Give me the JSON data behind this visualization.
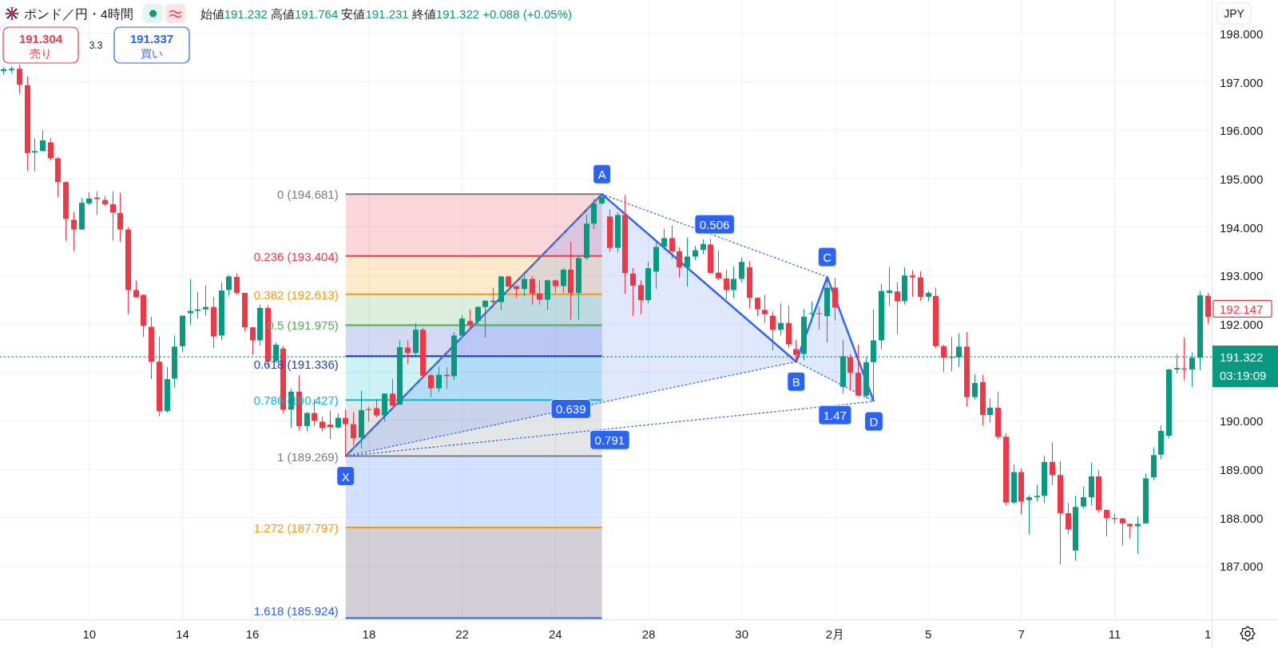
{
  "chart_data": {
    "type": "candlestick",
    "title": "ポンド／円・4時間",
    "subtitle": "始値191.232 高値191.764 安値191.231 終値191.322 +0.088 (+0.05%)",
    "ylabel": "JPY",
    "grid": true,
    "ylim": [
      185.9,
      198.69
    ],
    "yticks": [
      {
        "value": 187,
        "label": "187.000"
      },
      {
        "value": 188,
        "label": "188.000"
      },
      {
        "value": 189,
        "label": "189.000"
      },
      {
        "value": 190,
        "label": "190.000"
      },
      {
        "value": 191,
        "label": null
      },
      {
        "value": 192,
        "label": "192.000"
      },
      {
        "value": 193,
        "label": "193.000"
      },
      {
        "value": 194,
        "label": "194.000"
      },
      {
        "value": 195,
        "label": "195.000"
      },
      {
        "value": 196,
        "label": "196.000"
      },
      {
        "value": 197,
        "label": "197.000"
      },
      {
        "value": 198,
        "label": "198.000"
      }
    ],
    "categories": [
      null,
      null,
      null,
      null,
      null,
      null,
      null,
      null,
      null,
      null,
      null,
      "10",
      null,
      null,
      null,
      null,
      null,
      null,
      null,
      null,
      null,
      null,
      null,
      "14",
      null,
      null,
      null,
      null,
      null,
      null,
      null,
      null,
      "16",
      null,
      null,
      null,
      null,
      null,
      null,
      null,
      null,
      null,
      null,
      null,
      null,
      null,
      null,
      "18",
      null,
      null,
      null,
      null,
      null,
      null,
      null,
      null,
      null,
      null,
      null,
      "22",
      null,
      null,
      null,
      null,
      null,
      null,
      null,
      null,
      null,
      null,
      null,
      "24",
      null,
      null,
      null,
      null,
      null,
      null,
      null,
      null,
      null,
      null,
      null,
      "28",
      null,
      null,
      null,
      null,
      null,
      null,
      null,
      null,
      null,
      null,
      null,
      "30",
      null,
      null,
      null,
      null,
      null,
      null,
      null,
      null,
      null,
      null,
      null,
      "2月",
      null,
      null,
      null,
      null,
      null,
      null,
      null,
      null,
      null,
      null,
      null,
      "5",
      null,
      null,
      null,
      null,
      null,
      null,
      null,
      null,
      null,
      null,
      null,
      "7",
      null,
      null,
      null,
      null,
      null,
      null,
      null,
      null,
      null,
      null,
      null,
      "11",
      null,
      null,
      null,
      null,
      null,
      null,
      null,
      null,
      null,
      null,
      null,
      "1"
    ],
    "ohlc": [
      [
        197.22,
        197.3,
        197.15,
        197.26
      ],
      [
        197.24,
        197.32,
        197.18,
        197.27
      ],
      [
        197.27,
        197.35,
        196.75,
        196.94
      ],
      [
        196.93,
        197.11,
        195.16,
        195.53
      ],
      [
        195.54,
        195.83,
        195.15,
        195.57
      ],
      [
        195.57,
        196.0,
        195.56,
        195.79
      ],
      [
        195.75,
        195.84,
        195.37,
        195.42
      ],
      [
        195.42,
        195.45,
        194.62,
        194.93
      ],
      [
        194.93,
        194.94,
        193.72,
        194.17
      ],
      [
        194.15,
        194.31,
        193.5,
        193.95
      ],
      [
        193.95,
        194.6,
        193.95,
        194.5
      ],
      [
        194.49,
        194.72,
        194.45,
        194.59
      ],
      [
        194.61,
        194.74,
        194.25,
        194.58
      ],
      [
        194.56,
        194.65,
        194.43,
        194.47
      ],
      [
        194.47,
        194.74,
        193.72,
        194.3
      ],
      [
        194.29,
        194.71,
        193.7,
        193.95
      ],
      [
        193.95,
        194.0,
        192.2,
        192.7
      ],
      [
        192.7,
        192.9,
        192.54,
        192.55
      ],
      [
        192.6,
        192.61,
        191.73,
        191.96
      ],
      [
        191.94,
        192.15,
        190.86,
        191.22
      ],
      [
        191.22,
        191.74,
        190.09,
        190.2
      ],
      [
        190.2,
        191.11,
        190.17,
        190.86
      ],
      [
        190.87,
        191.76,
        190.68,
        191.53
      ],
      [
        191.54,
        192.17,
        191.42,
        192.17
      ],
      [
        192.22,
        192.93,
        191.98,
        192.27
      ],
      [
        192.27,
        192.66,
        192.11,
        192.3
      ],
      [
        192.3,
        192.79,
        192.17,
        192.35
      ],
      [
        192.35,
        192.56,
        191.5,
        191.74
      ],
      [
        191.76,
        192.86,
        191.66,
        192.69
      ],
      [
        192.7,
        193.01,
        192.57,
        192.98
      ],
      [
        192.97,
        193.04,
        192.6,
        192.64
      ],
      [
        192.64,
        192.64,
        191.85,
        191.93
      ],
      [
        191.93,
        191.93,
        191.36,
        191.66
      ],
      [
        191.66,
        192.4,
        191.55,
        192.33
      ],
      [
        192.33,
        192.39,
        191.11,
        191.23
      ],
      [
        191.23,
        191.62,
        191.19,
        191.57
      ],
      [
        191.49,
        191.54,
        190.15,
        190.23
      ],
      [
        190.23,
        190.66,
        189.85,
        190.6
      ],
      [
        190.6,
        190.94,
        189.8,
        189.89
      ],
      [
        189.89,
        190.18,
        189.78,
        190.16
      ],
      [
        190.16,
        190.45,
        189.89,
        190.0
      ],
      [
        189.98,
        190.09,
        189.78,
        189.85
      ],
      [
        189.92,
        190.22,
        189.62,
        189.87
      ],
      [
        189.86,
        190.15,
        189.84,
        190.06
      ],
      [
        190.06,
        190.23,
        189.269,
        189.93
      ],
      [
        189.93,
        190.18,
        189.49,
        189.64
      ],
      [
        189.65,
        190.62,
        189.43,
        190.22
      ],
      [
        190.24,
        190.29,
        189.98,
        190.22
      ],
      [
        190.26,
        190.45,
        190.07,
        190.11
      ],
      [
        190.11,
        190.56,
        189.98,
        190.56
      ],
      [
        190.56,
        190.86,
        190.31,
        190.31
      ],
      [
        190.33,
        191.66,
        190.33,
        191.52
      ],
      [
        191.51,
        191.66,
        191.17,
        191.4
      ],
      [
        191.4,
        192.02,
        191.34,
        191.88
      ],
      [
        191.88,
        191.92,
        190.9,
        190.93
      ],
      [
        190.94,
        190.97,
        190.49,
        190.67
      ],
      [
        190.67,
        191.11,
        190.59,
        190.95
      ],
      [
        190.95,
        191.1,
        190.66,
        190.92
      ],
      [
        190.92,
        191.83,
        190.84,
        191.76
      ],
      [
        191.76,
        192.18,
        191.76,
        192.11
      ],
      [
        192.06,
        192.3,
        191.88,
        191.98
      ],
      [
        192.06,
        192.37,
        191.98,
        192.35
      ],
      [
        192.35,
        192.49,
        191.72,
        192.48
      ],
      [
        192.48,
        192.75,
        192.37,
        192.45
      ],
      [
        192.45,
        192.99,
        192.28,
        192.98
      ],
      [
        192.98,
        192.99,
        192.77,
        192.77
      ],
      [
        192.78,
        192.78,
        192.54,
        192.72
      ],
      [
        192.72,
        193.0,
        192.57,
        192.93
      ],
      [
        192.93,
        192.98,
        192.4,
        192.63
      ],
      [
        192.63,
        192.9,
        192.4,
        192.5
      ],
      [
        192.5,
        192.92,
        192.29,
        192.9
      ],
      [
        192.9,
        192.92,
        192.64,
        192.78
      ],
      [
        192.78,
        193.15,
        192.64,
        193.12
      ],
      [
        193.12,
        193.7,
        192.09,
        192.64
      ],
      [
        192.64,
        193.42,
        192.09,
        193.36
      ],
      [
        193.36,
        194.25,
        193.32,
        194.07
      ],
      [
        194.07,
        194.58,
        193.96,
        194.49
      ],
      [
        194.49,
        194.681,
        194.46,
        194.62
      ],
      [
        194.22,
        194.36,
        193.48,
        193.57
      ],
      [
        193.57,
        194.31,
        193.48,
        194.25
      ],
      [
        194.25,
        194.66,
        192.62,
        193.05
      ],
      [
        193.04,
        193.15,
        192.16,
        192.79
      ],
      [
        192.8,
        192.9,
        192.2,
        192.49
      ],
      [
        192.49,
        193.28,
        192.43,
        193.15
      ],
      [
        193.08,
        193.72,
        192.72,
        193.59
      ],
      [
        193.59,
        193.96,
        193.53,
        193.77
      ],
      [
        193.77,
        194.03,
        193.34,
        193.5
      ],
      [
        193.5,
        193.58,
        192.95,
        193.17
      ],
      [
        193.17,
        193.78,
        192.77,
        193.39
      ],
      [
        193.39,
        193.61,
        193.32,
        193.52
      ],
      [
        193.53,
        193.75,
        193.44,
        193.65
      ],
      [
        193.64,
        193.76,
        193.05,
        193.05
      ],
      [
        193.06,
        193.52,
        192.9,
        192.94
      ],
      [
        192.94,
        193.12,
        192.51,
        192.7
      ],
      [
        192.7,
        193.19,
        192.53,
        192.93
      ],
      [
        192.93,
        193.37,
        192.86,
        193.28
      ],
      [
        193.17,
        193.3,
        192.32,
        192.54
      ],
      [
        192.54,
        192.55,
        192.16,
        192.3
      ],
      [
        192.29,
        192.6,
        192.02,
        192.2
      ],
      [
        192.17,
        192.26,
        191.45,
        191.88
      ],
      [
        191.88,
        192.43,
        191.76,
        192.02
      ],
      [
        192.02,
        192.38,
        191.5,
        191.58
      ],
      [
        191.48,
        191.67,
        191.22,
        191.36
      ],
      [
        191.38,
        192.31,
        191.25,
        192.15
      ],
      [
        192.21,
        192.46,
        192.04,
        192.23
      ],
      [
        192.22,
        192.35,
        191.88,
        192.21
      ],
      [
        192.16,
        192.97,
        191.61,
        192.75
      ],
      [
        192.75,
        192.95,
        192.07,
        192.34
      ],
      [
        190.7,
        191.67,
        190.56,
        191.33
      ],
      [
        191.31,
        191.38,
        190.62,
        190.99
      ],
      [
        190.99,
        191.57,
        190.5,
        190.52
      ],
      [
        190.52,
        191.32,
        190.47,
        191.21
      ],
      [
        191.21,
        192.3,
        190.4,
        191.66
      ],
      [
        191.66,
        192.83,
        191.48,
        192.68
      ],
      [
        192.64,
        193.17,
        192.37,
        192.69
      ],
      [
        192.67,
        192.86,
        191.79,
        192.47
      ],
      [
        192.47,
        193.17,
        192.4,
        193.0
      ],
      [
        193.0,
        193.11,
        192.56,
        192.96
      ],
      [
        192.96,
        193.09,
        192.48,
        192.56
      ],
      [
        192.56,
        192.68,
        192.47,
        192.64
      ],
      [
        192.58,
        192.75,
        191.49,
        191.54
      ],
      [
        191.54,
        191.57,
        191.0,
        191.3
      ],
      [
        191.3,
        191.73,
        191.02,
        191.32
      ],
      [
        191.31,
        191.81,
        191.11,
        191.53
      ],
      [
        191.53,
        191.83,
        190.29,
        190.49
      ],
      [
        190.49,
        190.96,
        190.44,
        190.78
      ],
      [
        190.8,
        190.95,
        189.9,
        190.12
      ],
      [
        190.12,
        190.46,
        189.96,
        190.27
      ],
      [
        190.27,
        190.6,
        189.61,
        189.67
      ],
      [
        189.67,
        189.74,
        188.24,
        188.31
      ],
      [
        188.31,
        189.09,
        188.27,
        188.94
      ],
      [
        188.94,
        189.02,
        188.07,
        188.33
      ],
      [
        188.36,
        188.46,
        187.65,
        188.42
      ],
      [
        188.42,
        188.68,
        188.33,
        188.45
      ],
      [
        188.45,
        189.28,
        188.3,
        189.15
      ],
      [
        189.15,
        189.56,
        188.67,
        188.88
      ],
      [
        188.88,
        189.17,
        187.03,
        188.09
      ],
      [
        188.09,
        188.3,
        187.66,
        187.76
      ],
      [
        187.32,
        188.45,
        187.11,
        188.22
      ],
      [
        188.23,
        188.64,
        188.19,
        188.42
      ],
      [
        188.42,
        189.13,
        188.25,
        188.85
      ],
      [
        188.85,
        188.98,
        188.1,
        188.16
      ],
      [
        188.16,
        188.16,
        187.61,
        187.99
      ],
      [
        187.99,
        188.08,
        187.87,
        187.97
      ],
      [
        187.98,
        188.0,
        187.42,
        187.88
      ],
      [
        187.87,
        187.88,
        187.57,
        187.82
      ],
      [
        187.82,
        188.02,
        187.25,
        187.87
      ],
      [
        187.88,
        188.91,
        187.87,
        188.81
      ],
      [
        188.83,
        189.45,
        188.77,
        189.29
      ],
      [
        189.3,
        189.91,
        189.2,
        189.79
      ],
      [
        189.69,
        191.07,
        189.63,
        191.06
      ],
      [
        191.06,
        191.38,
        190.98,
        191.09
      ],
      [
        191.08,
        191.72,
        190.84,
        191.06
      ],
      [
        191.06,
        191.41,
        190.7,
        191.3
      ],
      [
        191.3,
        192.68,
        191.05,
        192.59
      ],
      [
        192.58,
        192.64,
        192.01,
        192.147
      ]
    ],
    "series": [
      {
        "type": "line",
        "color": "#2962ff",
        "line_style": "solid",
        "values": [
          null,
          null,
          null,
          null,
          null,
          null,
          null,
          null,
          null,
          null,
          null,
          null,
          null,
          null,
          null,
          null,
          null,
          null,
          null,
          null,
          null,
          null,
          null,
          null,
          null,
          null,
          null,
          null,
          null,
          null,
          null,
          null,
          null,
          null,
          null,
          null,
          null,
          null,
          null,
          null,
          null,
          null,
          null,
          null,
          189.269,
          null,
          null,
          null,
          null,
          null,
          null,
          null,
          null,
          null,
          null,
          null,
          null,
          null,
          null,
          null,
          null,
          null,
          null,
          null,
          null,
          null,
          null,
          null,
          null,
          null,
          null,
          null,
          null,
          null,
          null,
          null,
          null,
          194.681,
          null,
          null,
          null,
          null,
          null,
          null,
          null,
          null,
          null,
          null,
          null,
          null,
          null,
          null,
          null,
          null,
          null,
          null,
          null,
          null,
          null,
          null,
          null,
          null,
          191.22,
          null,
          null,
          null,
          192.97,
          null,
          null,
          null,
          null,
          null,
          190.4,
          null,
          null,
          null,
          null,
          null,
          null,
          null,
          null,
          null,
          null,
          null,
          null,
          null,
          null,
          null,
          null,
          null,
          null,
          null,
          null,
          null,
          null,
          null,
          null,
          null,
          null,
          null,
          null,
          null,
          null,
          null,
          null,
          null,
          null,
          null,
          null,
          null,
          null,
          null,
          null,
          null,
          null,
          null
        ],
        "upper": [
          null,
          null,
          null,
          null,
          null,
          null,
          null,
          null,
          null,
          null,
          null,
          null,
          null,
          null,
          null,
          null,
          null,
          null,
          null,
          null,
          null,
          null,
          null,
          null,
          null,
          null,
          null,
          null,
          null,
          null,
          null,
          null,
          null,
          null,
          null,
          null,
          null,
          null,
          null,
          null,
          null,
          null,
          null,
          null,
          189.269,
          null,
          null,
          null,
          null,
          null,
          null,
          null,
          null,
          null,
          null,
          null,
          null,
          null,
          null,
          null,
          null,
          null,
          null,
          null,
          null,
          null,
          null,
          null,
          null,
          null,
          null,
          null,
          null,
          null,
          null,
          null,
          null,
          194.681,
          null,
          null,
          null,
          null,
          null,
          null,
          null,
          null,
          null,
          null,
          null,
          null,
          null,
          null,
          null,
          null,
          null,
          null,
          null,
          null,
          null,
          null,
          null,
          null,
          191.22,
          null,
          null,
          null,
          192.97,
          null,
          null,
          null,
          null,
          null,
          190.4,
          null,
          null,
          null,
          null,
          null,
          null,
          null,
          null,
          null,
          null,
          null,
          null,
          null,
          null,
          null,
          null,
          null,
          null,
          null,
          null,
          null,
          null,
          null,
          null,
          null,
          null,
          null,
          null,
          null,
          null,
          null,
          null,
          null,
          null,
          null,
          null,
          null,
          null,
          null,
          null,
          null,
          null,
          null
        ],
        "lower": [
          null,
          null,
          null,
          null,
          null,
          null,
          null,
          null,
          null,
          null,
          null,
          null,
          null,
          null,
          null,
          null,
          null,
          null,
          null,
          null,
          null,
          null,
          null,
          null,
          null,
          null,
          null,
          null,
          null,
          null,
          null,
          null,
          null,
          null,
          null,
          null,
          null,
          null,
          null,
          null,
          null,
          null,
          null,
          null,
          189.269,
          null,
          null,
          null,
          null,
          null,
          null,
          null,
          null,
          null,
          null,
          null,
          null,
          null,
          null,
          null,
          null,
          null,
          null,
          null,
          null,
          null,
          null,
          null,
          null,
          null,
          null,
          null,
          null,
          null,
          null,
          null,
          null,
          190.38,
          null,
          null,
          null,
          null,
          null,
          null,
          null,
          null,
          null,
          null,
          null,
          null,
          null,
          null,
          null,
          null,
          null,
          null,
          null,
          null,
          null,
          null,
          null,
          null,
          191.22,
          null,
          null,
          null,
          190.89,
          null,
          null,
          null,
          null,
          null,
          190.4,
          null,
          null,
          null,
          null,
          null,
          null,
          null,
          null,
          null,
          null,
          null,
          null,
          null,
          null,
          null,
          null,
          null,
          null,
          null,
          null,
          null,
          null,
          null,
          null,
          null,
          null,
          null,
          null,
          null,
          null,
          null,
          null,
          null,
          null,
          null,
          null,
          null,
          null,
          null,
          null,
          null,
          null,
          null
        ]
      },
      {
        "type": "line",
        "color": "#787b86",
        "line_style": "dashed",
        "values": [
          null,
          null,
          null,
          null,
          null,
          null,
          null,
          null,
          null,
          null,
          null,
          null,
          null,
          null,
          null,
          null,
          null,
          null,
          null,
          null,
          null,
          null,
          null,
          null,
          null,
          null,
          null,
          null,
          null,
          null,
          null,
          null,
          null,
          null,
          null,
          null,
          null,
          null,
          null,
          null,
          null,
          null,
          null,
          null,
          189.269,
          null,
          null,
          null,
          null,
          null,
          null,
          null,
          null,
          null,
          null,
          null,
          null,
          null,
          null,
          null,
          null,
          null,
          null,
          null,
          null,
          null,
          null,
          null,
          null,
          null,
          null,
          null,
          null,
          null,
          null,
          null,
          null,
          194.681,
          null,
          null,
          null,
          null,
          null,
          null,
          null,
          null,
          null,
          null,
          null,
          null,
          null,
          null,
          null,
          null,
          null,
          null,
          null,
          null,
          null,
          null,
          null,
          null,
          null,
          null,
          null,
          null,
          null,
          null,
          null,
          null,
          null,
          null,
          null,
          null,
          null,
          null,
          null,
          null,
          null,
          null,
          null,
          null,
          null,
          null,
          null,
          null,
          null,
          null,
          null,
          null,
          null,
          null,
          null,
          null,
          null,
          null,
          null,
          null,
          null,
          null,
          null,
          null,
          null,
          null,
          null,
          null,
          null,
          null,
          null,
          null,
          null,
          null,
          null,
          null,
          null,
          null
        ]
      },
      {
        "type": "line",
        "color": "#2962ff",
        "line_style": "dotted",
        "values": [
          null,
          null,
          null,
          null,
          null,
          null,
          null,
          null,
          null,
          null,
          null,
          null,
          null,
          null,
          null,
          null,
          null,
          null,
          null,
          null,
          null,
          null,
          null,
          null,
          null,
          null,
          null,
          null,
          null,
          null,
          null,
          null,
          null,
          null,
          null,
          null,
          null,
          null,
          null,
          null,
          null,
          null,
          null,
          null,
          189.269,
          null,
          null,
          null,
          null,
          null,
          null,
          null,
          null,
          null,
          null,
          null,
          null,
          null,
          null,
          null,
          null,
          null,
          null,
          null,
          null,
          null,
          null,
          null,
          null,
          null,
          null,
          null,
          null,
          null,
          null,
          null,
          null,
          null,
          null,
          null,
          null,
          null,
          null,
          null,
          null,
          null,
          null,
          null,
          null,
          null,
          null,
          null,
          null,
          null,
          null,
          null,
          null,
          null,
          null,
          null,
          null,
          null,
          191.22,
          null,
          null,
          null,
          null,
          null,
          null,
          null,
          null,
          null,
          null,
          null,
          null,
          null,
          null,
          null,
          null,
          null,
          null,
          null,
          null,
          null,
          null,
          null,
          null,
          null,
          null,
          null,
          null,
          null,
          null,
          null,
          null,
          null,
          null,
          null,
          null,
          null,
          null,
          null,
          null,
          null,
          null,
          null,
          null,
          null,
          null,
          null,
          null,
          null,
          null,
          null,
          null,
          null
        ]
      },
      {
        "type": "line",
        "color": "#2962ff",
        "line_style": "dotted",
        "values": [
          null,
          null,
          null,
          null,
          null,
          null,
          null,
          null,
          null,
          null,
          null,
          null,
          null,
          null,
          null,
          null,
          null,
          null,
          null,
          null,
          null,
          null,
          null,
          null,
          null,
          null,
          null,
          null,
          null,
          null,
          null,
          null,
          null,
          null,
          null,
          null,
          null,
          null,
          null,
          null,
          null,
          null,
          null,
          null,
          null,
          null,
          null,
          null,
          null,
          null,
          null,
          null,
          null,
          null,
          null,
          null,
          null,
          null,
          null,
          null,
          null,
          null,
          null,
          null,
          null,
          null,
          null,
          null,
          null,
          null,
          null,
          null,
          null,
          null,
          null,
          null,
          null,
          194.681,
          null,
          null,
          null,
          null,
          null,
          null,
          null,
          null,
          null,
          null,
          null,
          null,
          null,
          null,
          null,
          null,
          null,
          null,
          null,
          null,
          null,
          null,
          null,
          null,
          null,
          null,
          null,
          null,
          192.97,
          null,
          null,
          null,
          null,
          null,
          null,
          null,
          null,
          null,
          null,
          null,
          null,
          null,
          null,
          null,
          null,
          null,
          null,
          null,
          null,
          null,
          null,
          null,
          null,
          null,
          null,
          null,
          null,
          null,
          null,
          null,
          null,
          null,
          null,
          null,
          null,
          null,
          null,
          null,
          null,
          null,
          null,
          null,
          null,
          null,
          null,
          null,
          null,
          null
        ]
      },
      {
        "type": "line",
        "color": "#2962ff",
        "line_style": "dotted",
        "values": [
          null,
          null,
          null,
          null,
          null,
          null,
          null,
          null,
          null,
          null,
          null,
          null,
          null,
          null,
          null,
          null,
          null,
          null,
          null,
          null,
          null,
          null,
          null,
          null,
          null,
          null,
          null,
          null,
          null,
          null,
          null,
          null,
          null,
          null,
          null,
          null,
          null,
          null,
          null,
          null,
          null,
          null,
          null,
          null,
          null,
          null,
          null,
          null,
          null,
          null,
          null,
          null,
          null,
          null,
          null,
          null,
          null,
          null,
          null,
          null,
          null,
          null,
          null,
          null,
          null,
          null,
          null,
          null,
          null,
          null,
          null,
          null,
          null,
          null,
          null,
          null,
          null,
          null,
          null,
          null,
          null,
          null,
          null,
          null,
          null,
          null,
          null,
          null,
          null,
          null,
          null,
          null,
          null,
          null,
          null,
          null,
          null,
          null,
          null,
          null,
          null,
          null,
          191.22,
          null,
          null,
          null,
          null,
          null,
          null,
          null,
          null,
          null,
          190.4,
          null,
          null,
          null,
          null,
          null,
          null,
          null,
          null,
          null,
          null,
          null,
          null,
          null,
          null,
          null,
          null,
          null,
          null,
          null,
          null,
          null,
          null,
          null,
          null,
          null,
          null,
          null,
          null,
          null,
          null,
          null,
          null,
          null,
          null,
          null,
          null,
          null,
          null,
          null,
          null,
          null,
          null,
          null
        ]
      },
      {
        "type": "line",
        "color": "#2962ff",
        "line_style": "dotted",
        "values": [
          null,
          null,
          null,
          null,
          null,
          null,
          null,
          null,
          null,
          null,
          null,
          null,
          null,
          null,
          null,
          null,
          null,
          null,
          null,
          null,
          null,
          null,
          null,
          null,
          null,
          null,
          null,
          null,
          null,
          null,
          null,
          null,
          null,
          null,
          null,
          null,
          null,
          null,
          null,
          null,
          null,
          null,
          null,
          null,
          189.269,
          null,
          null,
          null,
          null,
          null,
          null,
          null,
          null,
          null,
          null,
          null,
          null,
          null,
          null,
          null,
          null,
          null,
          null,
          null,
          null,
          null,
          null,
          null,
          null,
          null,
          null,
          null,
          null,
          null,
          null,
          null,
          null,
          null,
          null,
          null,
          null,
          null,
          null,
          null,
          null,
          null,
          null,
          null,
          null,
          null,
          null,
          null,
          null,
          null,
          null,
          null,
          null,
          null,
          null,
          null,
          null,
          null,
          null,
          null,
          null,
          null,
          null,
          null,
          null,
          null,
          null,
          null,
          190.4,
          null,
          null,
          null,
          null,
          null,
          null,
          null,
          null,
          null,
          null,
          null,
          null,
          null,
          null,
          null,
          null,
          null,
          null,
          null,
          null,
          null,
          null,
          null,
          null,
          null,
          null,
          null,
          null,
          null,
          null,
          null,
          null,
          null,
          null,
          null,
          null,
          null,
          null,
          null,
          null,
          null,
          null,
          null
        ]
      }
    ],
    "ref_lines": [
      {
        "axis": "y",
        "value": 194.681,
        "label": "0 (194.681)",
        "color": "#787b86"
      },
      {
        "axis": "y",
        "value": 193.404,
        "label": "0.236 (193.404)",
        "color": "#f23645"
      },
      {
        "axis": "y",
        "value": 192.613,
        "label": "0.382 (192.613)",
        "color": "#ff9800"
      },
      {
        "axis": "y",
        "value": 191.975,
        "label": "0.5 (191.975)",
        "color": "#4caf50"
      },
      {
        "axis": "y",
        "value": 191.336,
        "label": "0.618 (191.336)",
        "color": "#1f3fbf"
      },
      {
        "axis": "y",
        "value": 190.427,
        "label": "0.786 (190.427)",
        "color": "#00bcd4"
      },
      {
        "axis": "y",
        "value": 189.269,
        "label": "1 (189.269)",
        "color": "#787b86"
      },
      {
        "axis": "y",
        "value": 187.797,
        "label": "1.272 (187.797)",
        "color": "#ff9800"
      },
      {
        "axis": "y",
        "value": 185.924,
        "label": "1.618 (185.924)",
        "color": "#2962ff"
      },
      {
        "axis": "y",
        "value": 191.322,
        "label": "191.322",
        "color": "#089981",
        "line_style": "dotted"
      }
    ],
    "bands": [
      {
        "axis": "y",
        "from": 193.404,
        "to": 194.681,
        "color": "#f23645"
      },
      {
        "axis": "y",
        "from": 192.613,
        "to": 193.404,
        "color": "#ff9800"
      },
      {
        "axis": "y",
        "from": 191.975,
        "to": 192.613,
        "color": "#4caf50"
      },
      {
        "axis": "y",
        "from": 191.336,
        "to": 191.975,
        "color": "#1f3fbf"
      },
      {
        "axis": "y",
        "from": 190.427,
        "to": 191.336,
        "color": "#00bcd4"
      },
      {
        "axis": "y",
        "from": 189.269,
        "to": 190.427,
        "color": "#787b86"
      },
      {
        "axis": "y",
        "from": 185.924,
        "to": 187.797,
        "color": "#ff9800"
      },
      {
        "axis": "y",
        "from": 185.924,
        "to": 189.269,
        "color": "#2962ff"
      }
    ],
    "annotations": [
      "191.304",
      "売り",
      "3.3",
      "191.337",
      "買い",
      "03:19:09",
      "192.147",
      {
        "text": "X",
        "y": 189.269
      },
      {
        "text": "A",
        "y": 194.681
      },
      {
        "text": "B",
        "y": 191.22
      },
      {
        "text": "C",
        "y": 192.97
      },
      {
        "text": "D",
        "y": 190.4
      },
      {
        "text": "0.639",
        "y": 190.245
      },
      {
        "text": "0.506",
        "y": 193.826
      },
      {
        "text": "1.47",
        "y": 190.81
      },
      {
        "text": "0.791",
        "y": 189.835
      }
    ]
  }
}
